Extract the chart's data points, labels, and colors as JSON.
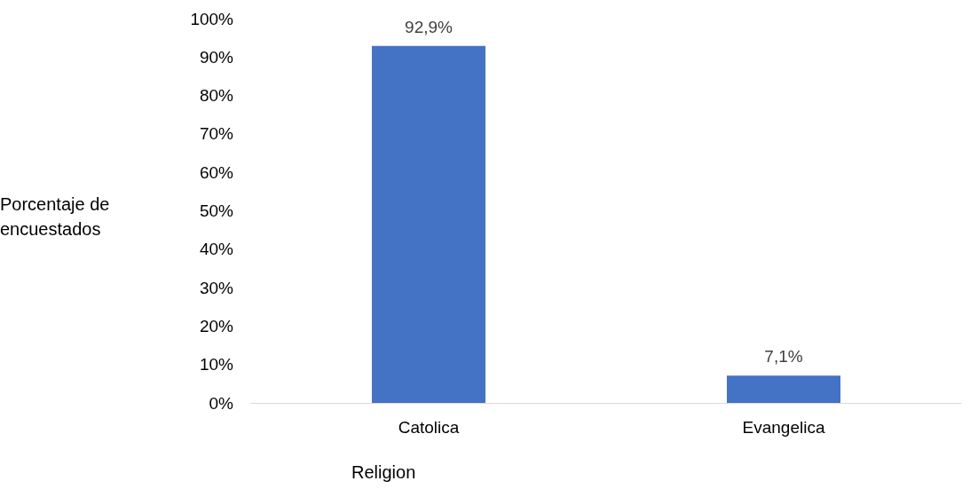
{
  "chart_data": {
    "type": "bar",
    "xlabel": "Religion",
    "ylabel": "Porcentaje de encuestados",
    "categories": [
      "Catolica",
      "Evangelica"
    ],
    "values": [
      92.9,
      7.1
    ],
    "value_labels": [
      "92,9%",
      "7,1%"
    ],
    "color": "#4472c4",
    "ylim": [
      0,
      100
    ],
    "yticks": [
      {
        "value": 0,
        "label": "0%"
      },
      {
        "value": 10,
        "label": "10%"
      },
      {
        "value": 20,
        "label": "20%"
      },
      {
        "value": 30,
        "label": "30%"
      },
      {
        "value": 40,
        "label": "40%"
      },
      {
        "value": 50,
        "label": "50%"
      },
      {
        "value": 60,
        "label": "60%"
      },
      {
        "value": 70,
        "label": "70%"
      },
      {
        "value": 80,
        "label": "80%"
      },
      {
        "value": 90,
        "label": "90%"
      },
      {
        "value": 100,
        "label": "100%"
      }
    ],
    "grid": false
  }
}
